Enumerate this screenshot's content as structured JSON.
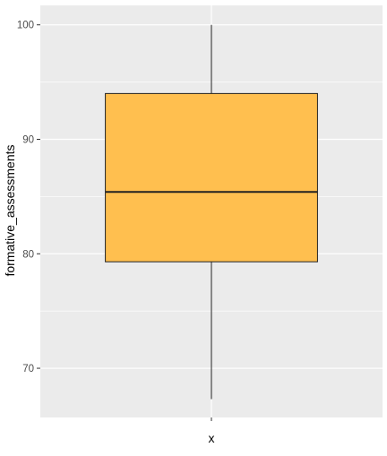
{
  "chart_data": {
    "type": "boxplot",
    "title": "",
    "xlabel": "x",
    "ylabel": "formative_assessments",
    "categories": [
      ""
    ],
    "boxes": [
      {
        "category": "",
        "min": 67.3,
        "q1": 79.3,
        "median": 85.4,
        "q3": 94.0,
        "max": 100.0,
        "fill": "#FFBF4F",
        "stroke": "#222222"
      }
    ],
    "y_ticks": [
      70,
      80,
      90,
      100
    ],
    "y_tick_labels": [
      "70",
      "80",
      "90",
      "100"
    ],
    "ylim": [
      65.7,
      101.7
    ],
    "grid": true,
    "legend": "none",
    "panel_background": "#EBEBEB",
    "grid_color": "#FFFFFF"
  }
}
